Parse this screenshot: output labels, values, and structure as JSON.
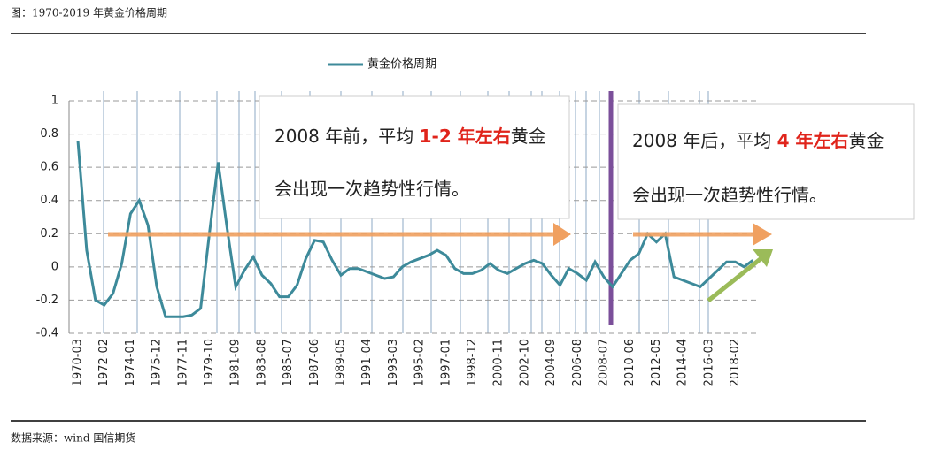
{
  "chart_data": {
    "type": "line",
    "title": "图：1970-2019 年黄金价格周期",
    "source": "数据来源：wind 国信期货",
    "categories": [
      "1970-03",
      null,
      null,
      "1972-02",
      null,
      null,
      "1974-01",
      null,
      null,
      "1975-12",
      null,
      null,
      "1977-11",
      null,
      null,
      "1979-10",
      null,
      null,
      "1981-09",
      null,
      null,
      "1983-08",
      null,
      null,
      "1985-07",
      null,
      null,
      "1987-06",
      null,
      null,
      "1989-05",
      null,
      null,
      "1991-04",
      null,
      null,
      "1993-03",
      null,
      null,
      "1995-02",
      null,
      null,
      "1997-01",
      null,
      null,
      "1998-12",
      null,
      null,
      "2000-11",
      null,
      null,
      "2002-10",
      null,
      null,
      "2004-09",
      null,
      null,
      "2006-08",
      null,
      null,
      "2008-07",
      null,
      null,
      "2010-06",
      null,
      null,
      "2012-05",
      null,
      null,
      "2014-04",
      null,
      null,
      "2016-03",
      null,
      null,
      "2018-02",
      null,
      null
    ],
    "series": [
      {
        "name": "黄金价格周期",
        "color": "#3d8a9a",
        "values": [
          0.76,
          0.1,
          -0.2,
          -0.23,
          -0.16,
          0.02,
          0.32,
          0.4,
          0.25,
          -0.12,
          -0.3,
          -0.3,
          -0.3,
          -0.29,
          -0.25,
          0.2,
          0.63,
          0.24,
          -0.12,
          -0.02,
          0.06,
          -0.05,
          -0.1,
          -0.18,
          -0.18,
          -0.11,
          0.05,
          0.16,
          0.15,
          0.04,
          -0.05,
          -0.01,
          -0.01,
          -0.03,
          -0.05,
          -0.07,
          -0.06,
          0.0,
          0.03,
          0.05,
          0.07,
          0.1,
          0.07,
          -0.01,
          -0.04,
          -0.04,
          -0.02,
          0.02,
          -0.02,
          -0.04,
          -0.01,
          0.02,
          0.04,
          0.02,
          -0.05,
          -0.11,
          -0.01,
          -0.04,
          -0.08,
          0.03,
          -0.06,
          -0.12,
          -0.04,
          0.04,
          0.08,
          0.2,
          0.15,
          0.2,
          -0.06,
          -0.08,
          -0.1,
          -0.12,
          -0.07,
          -0.02,
          0.03,
          0.03,
          0.0,
          0.04
        ]
      }
    ],
    "ylim": [
      -0.4,
      1
    ],
    "yticks": [
      -0.4,
      -0.2,
      0,
      0.2,
      0.4,
      0.6,
      0.8,
      1
    ],
    "grid": true,
    "annotations": [
      {
        "line1": [
          "2008 年前，平均 ",
          "1-2 年左右",
          "黄金"
        ],
        "line2": "会出现一次趋势性行情。"
      },
      {
        "line1": [
          "2008 年后，平均 ",
          "4 年左右",
          "黄金"
        ],
        "line2": "会出现一次趋势性行情。"
      }
    ]
  }
}
